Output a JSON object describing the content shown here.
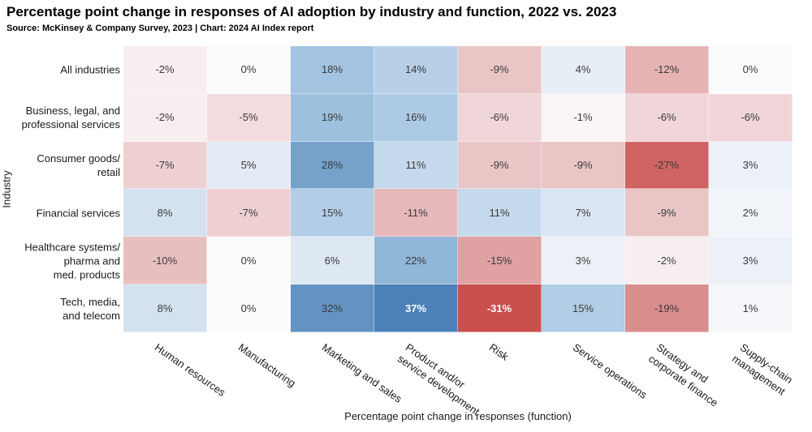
{
  "chart_data": {
    "type": "heatmap",
    "title": "Percentage point change in responses of AI adoption by industry and function, 2022 vs. 2023",
    "source": "Source: McKinsey & Company Survey, 2023 | Chart: 2024 AI Index report",
    "xlabel": "Percentage point change in responses (function)",
    "ylabel": "Industry",
    "columns": [
      [
        "Human resources"
      ],
      [
        "Manufacturing"
      ],
      [
        "Marketing and sales"
      ],
      [
        "Product and/or",
        "service development"
      ],
      [
        "Risk"
      ],
      [
        "Service operations"
      ],
      [
        "Strategy and",
        "corporate finance"
      ],
      [
        "Supply-chain",
        "management"
      ]
    ],
    "rows": [
      [
        "All industries"
      ],
      [
        "Business, legal, and",
        "professional services"
      ],
      [
        "Consumer goods/",
        "retail"
      ],
      [
        "Financial services"
      ],
      [
        "Healthcare systems/",
        "pharma and",
        "med. products"
      ],
      [
        "Tech, media,",
        "and telecom"
      ]
    ],
    "values": [
      [
        -2,
        0,
        18,
        14,
        -9,
        4,
        -12,
        0
      ],
      [
        -2,
        -5,
        19,
        16,
        -6,
        -1,
        -6,
        -6
      ],
      [
        -7,
        5,
        28,
        11,
        -9,
        -9,
        -27,
        3
      ],
      [
        8,
        -7,
        15,
        -11,
        11,
        7,
        -9,
        2
      ],
      [
        -10,
        0,
        6,
        22,
        -15,
        3,
        -2,
        3
      ],
      [
        8,
        0,
        32,
        37,
        -31,
        15,
        -19,
        1
      ]
    ],
    "value_suffix": "%",
    "value_range": [
      -31,
      37
    ],
    "legend": "none",
    "grid": false,
    "color_scale": {
      "negative_stops": [
        [
          0,
          "#fbfafc"
        ],
        [
          15,
          "#dfa1a2"
        ],
        [
          31,
          "#c94f4c"
        ]
      ],
      "positive_stops": [
        [
          0,
          "#fbfafc"
        ],
        [
          18,
          "#a3c4e1"
        ],
        [
          37,
          "#4b81b8"
        ]
      ],
      "dark_text": "#3a3a3a",
      "light_text": "#ffffff",
      "light_text_pos_min": 34,
      "light_text_neg_max": -29
    }
  }
}
